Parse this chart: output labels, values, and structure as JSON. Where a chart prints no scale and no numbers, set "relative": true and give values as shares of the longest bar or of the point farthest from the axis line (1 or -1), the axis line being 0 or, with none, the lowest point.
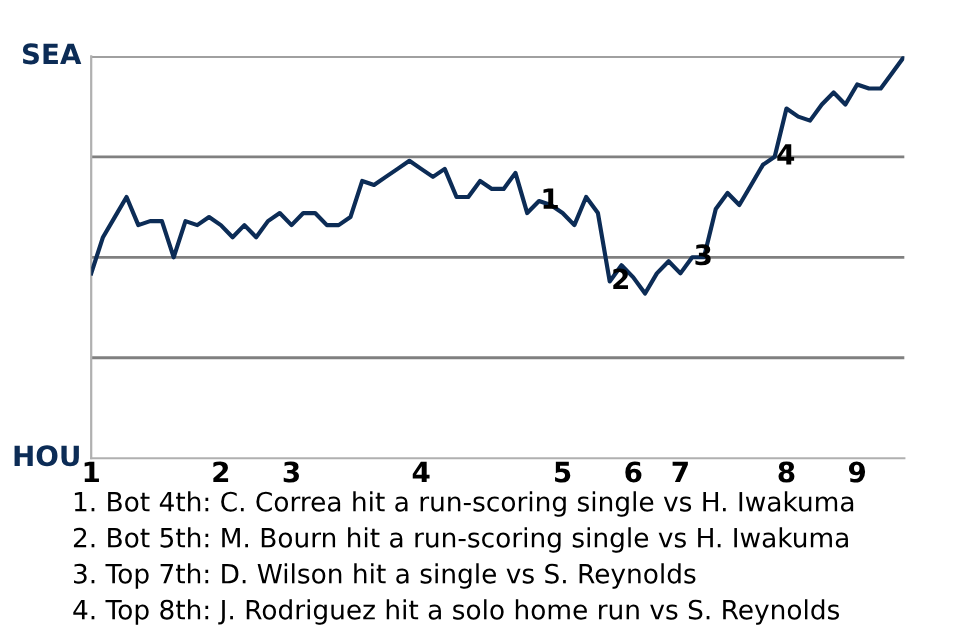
{
  "chart_data": {
    "type": "line",
    "relative": true,
    "categories": [
      "1",
      null,
      null,
      null,
      null,
      null,
      null,
      null,
      null,
      null,
      null,
      "2",
      null,
      null,
      null,
      null,
      null,
      "3",
      null,
      null,
      null,
      null,
      null,
      null,
      null,
      null,
      null,
      null,
      "4",
      null,
      null,
      null,
      null,
      null,
      null,
      null,
      null,
      null,
      null,
      null,
      "5",
      null,
      null,
      null,
      null,
      null,
      "6",
      null,
      null,
      null,
      "7",
      null,
      null,
      null,
      null,
      null,
      null,
      null,
      null,
      "8",
      null,
      null,
      null,
      null,
      null,
      "9",
      null,
      null,
      null,
      null
    ],
    "grid": "y",
    "marker": "none",
    "line_style": "solid",
    "series": [
      {
        "color": "#0c2c56",
        "values": [
          0.46,
          0.55,
          0.6,
          0.65,
          0.58,
          0.59,
          0.59,
          0.5,
          0.59,
          0.58,
          0.6,
          0.58,
          0.55,
          0.58,
          0.55,
          0.59,
          0.61,
          0.58,
          0.61,
          0.61,
          0.58,
          0.58,
          0.6,
          0.69,
          0.68,
          0.7,
          0.72,
          0.74,
          0.72,
          0.7,
          0.72,
          0.65,
          0.65,
          0.69,
          0.67,
          0.67,
          0.71,
          0.61,
          0.64,
          0.63,
          0.61,
          0.58,
          0.65,
          0.61,
          0.44,
          0.48,
          0.45,
          0.41,
          0.46,
          0.49,
          0.46,
          0.5,
          0.5,
          0.62,
          0.66,
          0.63,
          0.68,
          0.73,
          0.75,
          0.87,
          0.85,
          0.84,
          0.88,
          0.91,
          0.88,
          0.93,
          0.92,
          0.92,
          0.96,
          1
        ]
      }
    ],
    "annotations": [
      "SEA",
      "HOU",
      {
        "text": "1",
        "y": 0.64
      },
      {
        "text": "2",
        "y": 0.44
      },
      {
        "text": "3",
        "y": 0.5
      },
      {
        "text": "4",
        "y": 0.75
      },
      "1. Bot 4th: C. Correa hit a run-scoring single vs H. Iwakuma",
      "2. Bot 5th: M. Bourn hit a run-scoring single vs H. Iwakuma",
      "3. Top 7th: D. Wilson hit a single vs S. Reynolds",
      "4. Top 8th: J. Rodriguez hit a solo home run vs S. Reynolds"
    ]
  }
}
